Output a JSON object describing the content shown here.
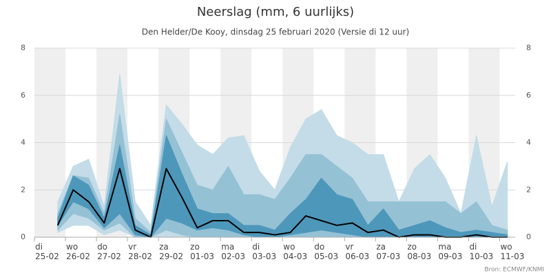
{
  "chart_data": {
    "type": "plume",
    "title": "Neerslag (mm, 6 uurlijks)",
    "subtitle": "Den Helder/De Kooy, dinsdag 25 februari 2020 (Versie di 12 uur)",
    "source": "Bron: ECMWF/KNMI",
    "x": [
      0.75,
      1.25,
      1.75,
      2.25,
      2.75,
      3.25,
      3.75,
      4.25,
      4.75,
      5.25,
      5.75,
      6.25,
      6.75,
      7.25,
      7.75,
      8.25,
      8.75,
      9.25,
      9.75,
      10.25,
      10.75,
      11.25,
      11.75,
      12.25,
      12.75,
      13.25,
      13.75,
      14.25,
      14.75,
      15.25
    ],
    "xlim": [
      0,
      15.5
    ],
    "xticks": [
      {
        "value": 0,
        "label": "di\n25-02"
      },
      {
        "value": 1,
        "label": "wo\n26-02"
      },
      {
        "value": 2,
        "label": "do\n27-02"
      },
      {
        "value": 3,
        "label": "vr\n28-02"
      },
      {
        "value": 4,
        "label": "za\n29-02"
      },
      {
        "value": 5,
        "label": "zo\n01-03"
      },
      {
        "value": 6,
        "label": "ma\n02-03"
      },
      {
        "value": 7,
        "label": "di\n03-03"
      },
      {
        "value": 8,
        "label": "wo\n04-03"
      },
      {
        "value": 9,
        "label": "do\n05-03"
      },
      {
        "value": 10,
        "label": "vr\n06-03"
      },
      {
        "value": 11,
        "label": "za\n07-03"
      },
      {
        "value": 12,
        "label": "zo\n08-03"
      },
      {
        "value": 13,
        "label": "ma\n09-03"
      },
      {
        "value": 14,
        "label": "di\n10-03"
      },
      {
        "value": 15,
        "label": "wo\n11-03"
      }
    ],
    "ylim": [
      0,
      8
    ],
    "yticks": [
      0,
      2,
      4,
      6,
      8
    ],
    "grid": true,
    "shade_color": "#efefef",
    "series": [
      {
        "color": "#c3dce8",
        "lower": [
          0.2,
          0.5,
          0.5,
          0.1,
          0.3,
          0,
          0,
          0,
          0,
          0,
          0,
          0,
          0,
          0,
          0,
          0,
          0,
          0,
          0,
          0,
          0,
          0,
          0,
          0,
          0,
          0,
          0,
          0,
          0,
          0
        ],
        "values": [
          1.5,
          3.0,
          3.3,
          1.3,
          6.9,
          1.5,
          0.5,
          5.6,
          4.8,
          3.9,
          3.5,
          4.2,
          4.3,
          2.8,
          2.0,
          3.8,
          5.0,
          5.4,
          4.3,
          4.0,
          3.5,
          3.5,
          1.5,
          2.9,
          3.5,
          2.5,
          1.0,
          4.3,
          1.3,
          3.2
        ]
      },
      {
        "color": "#95c1d5",
        "lower": [
          0.3,
          1.0,
          0.8,
          0.3,
          0.6,
          0,
          0,
          0.3,
          0.1,
          0,
          0,
          0,
          0,
          0,
          0,
          0,
          0,
          0,
          0,
          0,
          0,
          0,
          0,
          0,
          0,
          0,
          0,
          0,
          0,
          0
        ],
        "values": [
          1.0,
          2.6,
          2.5,
          1.0,
          5.2,
          0.8,
          0.2,
          5.0,
          3.6,
          2.2,
          2.0,
          3.0,
          1.8,
          1.8,
          1.6,
          2.5,
          3.5,
          3.5,
          3.0,
          2.5,
          1.5,
          1.5,
          1.5,
          1.5,
          1.5,
          1.5,
          1.0,
          1.5,
          0.5,
          0.3
        ]
      },
      {
        "color": "#4d97ba",
        "lower": [
          0.5,
          1.5,
          1.2,
          0.4,
          1.0,
          0.1,
          0,
          0.8,
          0.6,
          0.3,
          0.4,
          0.3,
          0.1,
          0,
          0,
          0.1,
          0.2,
          0.3,
          0.2,
          0.1,
          0,
          0,
          0,
          0,
          0,
          0,
          0,
          0,
          0,
          0
        ],
        "values": [
          0.8,
          2.6,
          2.2,
          0.8,
          3.9,
          0.5,
          0.1,
          4.3,
          2.7,
          1.2,
          1.0,
          1.0,
          0.5,
          0.5,
          0.3,
          1.0,
          1.6,
          2.5,
          1.8,
          1.6,
          0.5,
          1.2,
          0.3,
          0.5,
          0.7,
          0.4,
          0.2,
          0.3,
          0.2,
          0.1
        ]
      },
      {
        "color": "#000000",
        "line": true,
        "values": [
          0.5,
          2.0,
          1.5,
          0.6,
          2.9,
          0.3,
          0,
          2.9,
          1.7,
          0.4,
          0.7,
          0.7,
          0.2,
          0.2,
          0.1,
          0.2,
          0.9,
          0.7,
          0.5,
          0.6,
          0.2,
          0.3,
          0,
          0.1,
          0.1,
          0,
          0,
          0.1,
          0,
          0
        ]
      }
    ]
  }
}
